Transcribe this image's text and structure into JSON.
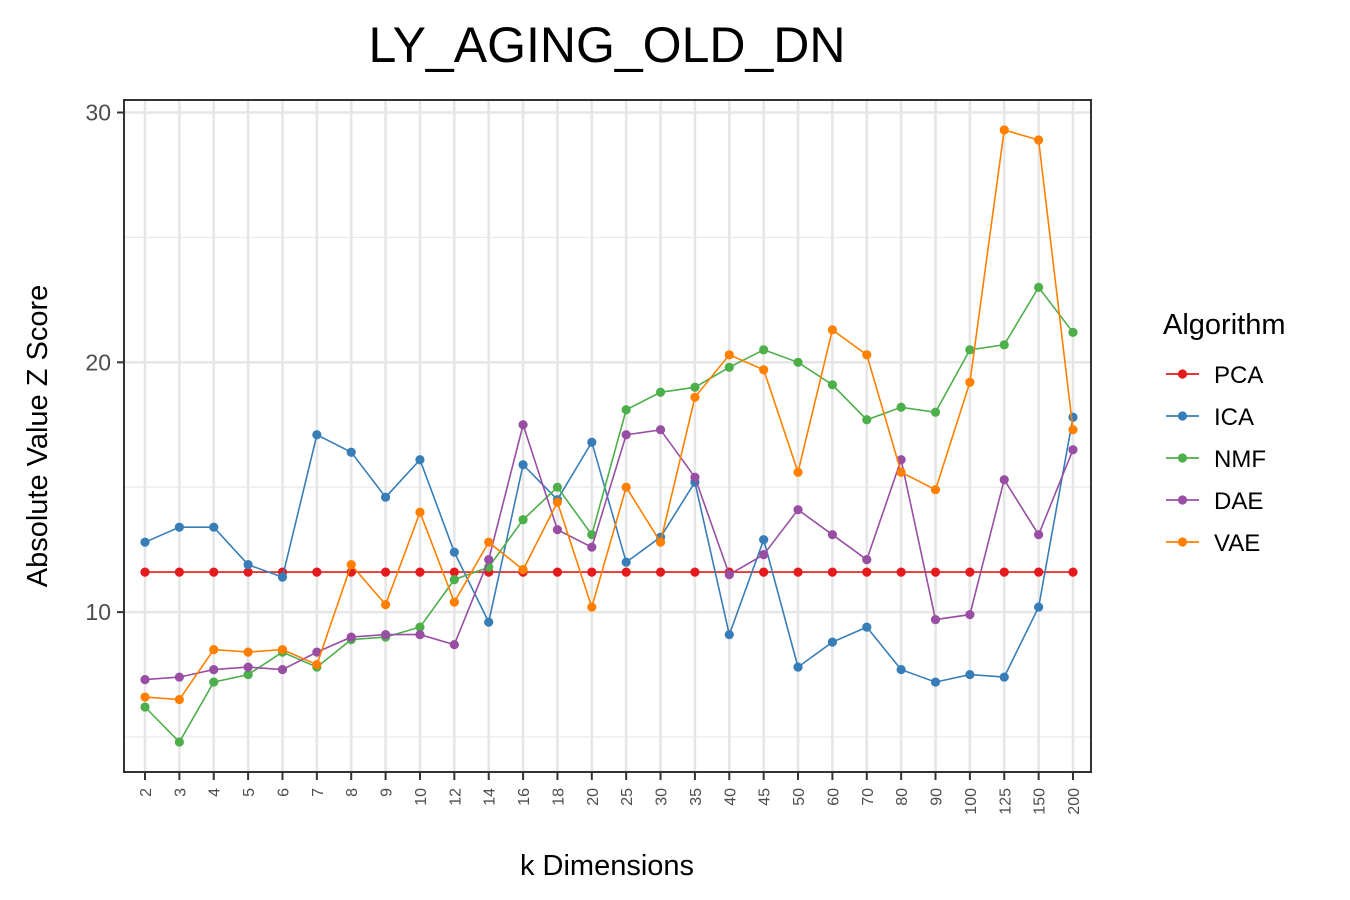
{
  "chart_data": {
    "type": "line",
    "title": "LY_AGING_OLD_DN",
    "xlabel": "k Dimensions",
    "ylabel": "Absolute Value Z Score",
    "categories": [
      "2",
      "3",
      "4",
      "5",
      "6",
      "7",
      "8",
      "9",
      "10",
      "12",
      "14",
      "16",
      "18",
      "20",
      "25",
      "30",
      "35",
      "40",
      "45",
      "50",
      "60",
      "70",
      "80",
      "90",
      "100",
      "125",
      "150",
      "200"
    ],
    "y_ticks": [
      "10",
      "20",
      "30"
    ],
    "ylim": [
      3.6,
      30.5
    ],
    "grid": true,
    "legend_title": "Algorithm",
    "legend_position": "right",
    "series": [
      {
        "name": "PCA",
        "color": "#e41a1c",
        "values": [
          11.6,
          11.6,
          11.6,
          11.6,
          11.6,
          11.6,
          11.6,
          11.6,
          11.6,
          11.6,
          11.6,
          11.6,
          11.6,
          11.6,
          11.6,
          11.6,
          11.6,
          11.6,
          11.6,
          11.6,
          11.6,
          11.6,
          11.6,
          11.6,
          11.6,
          11.6,
          11.6,
          11.6
        ]
      },
      {
        "name": "ICA",
        "color": "#377eb8",
        "values": [
          12.8,
          13.4,
          13.4,
          11.9,
          11.4,
          17.1,
          16.4,
          14.6,
          16.1,
          12.4,
          9.6,
          15.9,
          14.5,
          16.8,
          12.0,
          13.0,
          15.2,
          9.1,
          12.9,
          7.8,
          8.8,
          9.4,
          7.7,
          7.2,
          7.5,
          7.4,
          10.2,
          17.8
        ]
      },
      {
        "name": "NMF",
        "color": "#4daf4a",
        "values": [
          6.2,
          4.8,
          7.2,
          7.5,
          8.4,
          7.8,
          8.9,
          9.0,
          9.4,
          11.3,
          11.8,
          13.7,
          15.0,
          13.1,
          18.1,
          18.8,
          19.0,
          19.8,
          20.5,
          20.0,
          19.1,
          17.7,
          18.2,
          18.0,
          20.5,
          20.7,
          23.0,
          21.2
        ]
      },
      {
        "name": "DAE",
        "color": "#984ea3",
        "values": [
          7.3,
          7.4,
          7.7,
          7.8,
          7.7,
          8.4,
          9.0,
          9.1,
          9.1,
          8.7,
          12.1,
          17.5,
          13.3,
          12.6,
          17.1,
          17.3,
          15.4,
          11.5,
          12.3,
          14.1,
          13.1,
          12.1,
          16.1,
          9.7,
          9.9,
          15.3,
          13.1,
          16.5
        ]
      },
      {
        "name": "VAE",
        "color": "#ff7f00",
        "values": [
          6.6,
          6.5,
          8.5,
          8.4,
          8.5,
          7.9,
          11.9,
          10.3,
          14.0,
          10.4,
          12.8,
          11.7,
          14.4,
          10.2,
          15.0,
          12.8,
          18.6,
          20.3,
          19.7,
          15.6,
          21.3,
          20.3,
          15.6,
          14.9,
          19.2,
          29.3,
          28.9,
          17.3
        ]
      }
    ]
  }
}
